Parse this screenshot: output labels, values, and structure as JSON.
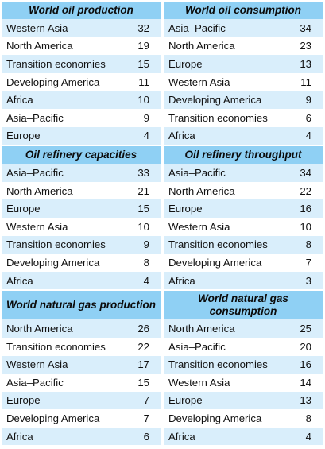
{
  "sections": [
    {
      "left": {
        "title": "World oil production",
        "rows": [
          {
            "label": "Western Asia",
            "value": "32"
          },
          {
            "label": "North America",
            "value": "19"
          },
          {
            "label": "Transition economies",
            "value": "15"
          },
          {
            "label": "Developing America",
            "value": "11"
          },
          {
            "label": "Africa",
            "value": "10"
          },
          {
            "label": "Asia–Pacific",
            "value": "9"
          },
          {
            "label": "Europe",
            "value": "4"
          }
        ]
      },
      "right": {
        "title": "World oil consumption",
        "rows": [
          {
            "label": "Asia–Pacific",
            "value": "34"
          },
          {
            "label": "North America",
            "value": "23"
          },
          {
            "label": "Europe",
            "value": "13"
          },
          {
            "label": "Western Asia",
            "value": "11"
          },
          {
            "label": "Developing America",
            "value": "9"
          },
          {
            "label": "Transition economies",
            "value": "6"
          },
          {
            "label": "Africa",
            "value": "4"
          }
        ]
      }
    },
    {
      "left": {
        "title": "Oil refinery capacities",
        "rows": [
          {
            "label": "Asia–Pacific",
            "value": "33"
          },
          {
            "label": "North America",
            "value": "21"
          },
          {
            "label": "Europe",
            "value": "15"
          },
          {
            "label": "Western Asia",
            "value": "10"
          },
          {
            "label": "Transition economies",
            "value": "9"
          },
          {
            "label": "Developing America",
            "value": "8"
          },
          {
            "label": "Africa",
            "value": "4"
          }
        ]
      },
      "right": {
        "title": "Oil refinery throughput",
        "rows": [
          {
            "label": "Asia–Pacific",
            "value": "34"
          },
          {
            "label": "North America",
            "value": "22"
          },
          {
            "label": "Europe",
            "value": "16"
          },
          {
            "label": "Western Asia",
            "value": "10"
          },
          {
            "label": "Transition economies",
            "value": "8"
          },
          {
            "label": "Developing America",
            "value": "7"
          },
          {
            "label": "Africa",
            "value": "3"
          }
        ]
      }
    },
    {
      "left": {
        "title": "World natural gas production",
        "rows": [
          {
            "label": "North America",
            "value": "26"
          },
          {
            "label": "Transition economies",
            "value": "22"
          },
          {
            "label": "Western Asia",
            "value": "17"
          },
          {
            "label": "Asia–Pacific",
            "value": "15"
          },
          {
            "label": "Europe",
            "value": "7"
          },
          {
            "label": "Developing America",
            "value": "7"
          },
          {
            "label": "Africa",
            "value": "6"
          }
        ]
      },
      "right": {
        "title": "World natural gas consumption",
        "rows": [
          {
            "label": "North America",
            "value": "25"
          },
          {
            "label": "Asia–Pacific",
            "value": "20"
          },
          {
            "label": "Transition economies",
            "value": "16"
          },
          {
            "label": "Western Asia",
            "value": "14"
          },
          {
            "label": "Europe",
            "value": "13"
          },
          {
            "label": "Developing America",
            "value": "8"
          },
          {
            "label": "Africa",
            "value": "4"
          }
        ]
      }
    }
  ],
  "colors": {
    "header_bg": "#8fd0f4",
    "shade_row": "#d9eefb",
    "plain_row": "#ffffff"
  }
}
